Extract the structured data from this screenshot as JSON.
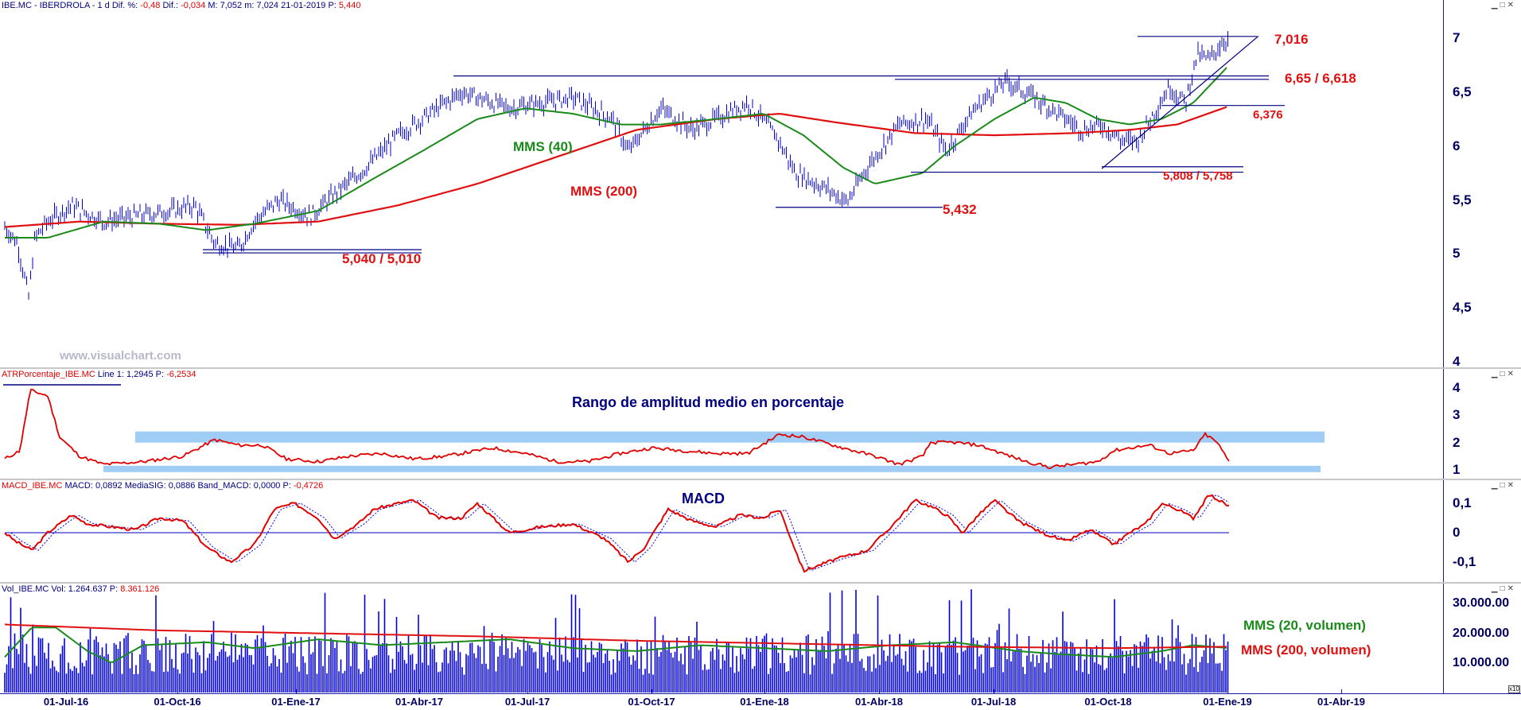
{
  "price_panel": {
    "header": {
      "symbol": "IBE.MC",
      "name": "IBERDROLA",
      "period": "1 d",
      "dif_pct_label": "Dif. %:",
      "dif_pct": "-0,48",
      "dif_label": "Dif.:",
      "dif": "-0,034",
      "max_label": "M:",
      "max": "7,052",
      "min_label": "m:",
      "min": "7,024",
      "date": "21-01-2019",
      "price_label": "P:",
      "price": "5,440"
    },
    "watermark": "www.visualchart.com",
    "y_ticks": [
      "7",
      "6,5",
      "6",
      "5,5",
      "5",
      "4,5",
      "4"
    ],
    "annotations": {
      "ma40": "MMS (40)",
      "ma200": "MMS (200)",
      "level_7016": "7,016",
      "level_665": "6,65 / 6,618",
      "level_6376": "6,376",
      "level_5808": "5,808 / 5,758",
      "level_5432": "5,432",
      "level_5040": "5,040 / 5,010"
    },
    "colors": {
      "bars": "#0000e0",
      "ma40": "#1a8a1a",
      "ma200": "#e01010",
      "levels": "#000080",
      "labels": "#e01010"
    }
  },
  "atr_panel": {
    "header": {
      "name": "ATRPorcentaje_IBE.MC",
      "line_label": "Line 1:",
      "line": "1,2945",
      "p_label": "P:",
      "p": "-6,2534"
    },
    "title": "Rango de amplitud medio en porcentaje",
    "y_ticks": [
      "4",
      "3",
      "2",
      "1"
    ],
    "colors": {
      "line": "#e00000",
      "band": "#9fcdf5"
    }
  },
  "macd_panel": {
    "header": {
      "name": "MACD_IBE.MC",
      "macd_label": "MACD:",
      "macd": "0,0892",
      "sig_label": "MediaSIG:",
      "sig": "0,0886",
      "band_label": "Band_MACD:",
      "band": "0,0000",
      "p_label": "P:",
      "p": "-0,4726"
    },
    "title": "MACD",
    "y_ticks": [
      "0,1",
      "0",
      "-0,1"
    ],
    "colors": {
      "macd": "#e00000",
      "signal": "#0000e0"
    }
  },
  "vol_panel": {
    "header": {
      "name": "Vol_IBE.MC",
      "vol_label": "Vol:",
      "vol": "1.264.637",
      "p_label": "P:",
      "p": "8.361.126"
    },
    "label_ma20": "MMS (20, volumen)",
    "label_ma200": "MMS (200, volumen)",
    "y_ticks": [
      "30.000.00",
      "20.000.00",
      "10.000.00"
    ],
    "corner": "x10",
    "colors": {
      "bars": "#0000e0",
      "ma20": "#1a8a1a",
      "ma200": "#e01010"
    }
  },
  "x_ticks": [
    "01-Jul-16",
    "01-Oct-16",
    "01-Ene-17",
    "01-Abr-17",
    "01-Jul-17",
    "01-Oct-17",
    "01-Ene-18",
    "01-Abr-18",
    "01-Jul-18",
    "01-Oct-18",
    "01-Ene-19",
    "01-Abr-19"
  ],
  "chart_data": {
    "type": "line",
    "title": "",
    "x": [
      "01-Jul-16",
      "01-Oct-16",
      "01-Ene-17",
      "01-Abr-17",
      "01-Jul-17",
      "01-Oct-17",
      "01-Ene-18",
      "01-Abr-18",
      "01-Jul-18",
      "01-Oct-18",
      "01-Ene-19"
    ],
    "series": [
      {
        "name": "IBE.MC",
        "values": [
          5.25,
          5.15,
          5.35,
          6.05,
          6.35,
          6.3,
          6.3,
          5.7,
          6.55,
          6.2,
          6.95
        ]
      },
      {
        "name": "MMS (40)",
        "values": [
          5.15,
          5.25,
          5.3,
          5.95,
          6.35,
          6.2,
          6.25,
          5.65,
          6.3,
          6.15,
          6.7
        ]
      },
      {
        "name": "MMS (200)",
        "values": [
          5.25,
          5.25,
          5.3,
          5.55,
          5.9,
          6.15,
          6.25,
          6.2,
          6.1,
          6.15,
          6.3
        ]
      }
    ],
    "levels": [
      7.016,
      6.65,
      6.618,
      6.376,
      5.808,
      5.758,
      5.432,
      5.04,
      5.01
    ],
    "ylim": [
      4,
      7.3
    ],
    "xlabel": "",
    "ylabel": ""
  }
}
